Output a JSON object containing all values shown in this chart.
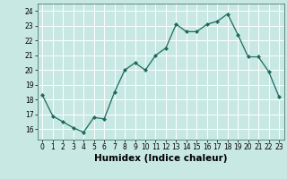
{
  "x": [
    0,
    1,
    2,
    3,
    4,
    5,
    6,
    7,
    8,
    9,
    10,
    11,
    12,
    13,
    14,
    15,
    16,
    17,
    18,
    19,
    20,
    21,
    22,
    23
  ],
  "y": [
    18.3,
    16.9,
    16.5,
    16.1,
    15.8,
    16.8,
    16.7,
    18.5,
    20.0,
    20.5,
    20.0,
    21.0,
    21.5,
    23.1,
    22.6,
    22.6,
    23.1,
    23.3,
    23.8,
    22.4,
    20.9,
    20.9,
    19.9,
    18.2
  ],
  "line_color": "#1a6b5e",
  "marker": "D",
  "marker_size": 2.0,
  "bg_color": "#c8e8e4",
  "grid_color": "#ffffff",
  "xlabel": "Humidex (Indice chaleur)",
  "xlim": [
    -0.5,
    23.5
  ],
  "ylim": [
    15.3,
    24.5
  ],
  "yticks": [
    16,
    17,
    18,
    19,
    20,
    21,
    22,
    23,
    24
  ],
  "xticks": [
    0,
    1,
    2,
    3,
    4,
    5,
    6,
    7,
    8,
    9,
    10,
    11,
    12,
    13,
    14,
    15,
    16,
    17,
    18,
    19,
    20,
    21,
    22,
    23
  ],
  "tick_fontsize": 5.5,
  "xlabel_fontsize": 7.5
}
